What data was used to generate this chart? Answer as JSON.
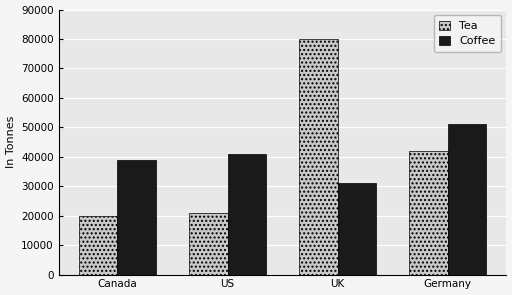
{
  "categories": [
    "Canada",
    "US",
    "UK",
    "Germany"
  ],
  "tea_values": [
    20000,
    21000,
    80000,
    42000
  ],
  "coffee_values": [
    39000,
    41000,
    31000,
    51000
  ],
  "ylabel": "In Tonnes",
  "ylim": [
    0,
    90000
  ],
  "yticks": [
    0,
    10000,
    20000,
    30000,
    40000,
    50000,
    60000,
    70000,
    80000,
    90000
  ],
  "tea_color": "#c8c8c8",
  "tea_hatch": "....",
  "coffee_color": "#1a1a1a",
  "legend_tea": "Tea",
  "legend_coffee": "Coffee",
  "bar_width": 0.35,
  "plot_bg_color": "#e8e8e8",
  "fig_bg_color": "#f5f5f5",
  "grid_color": "#ffffff",
  "ylabel_fontsize": 8,
  "tick_fontsize": 7.5,
  "legend_fontsize": 8
}
